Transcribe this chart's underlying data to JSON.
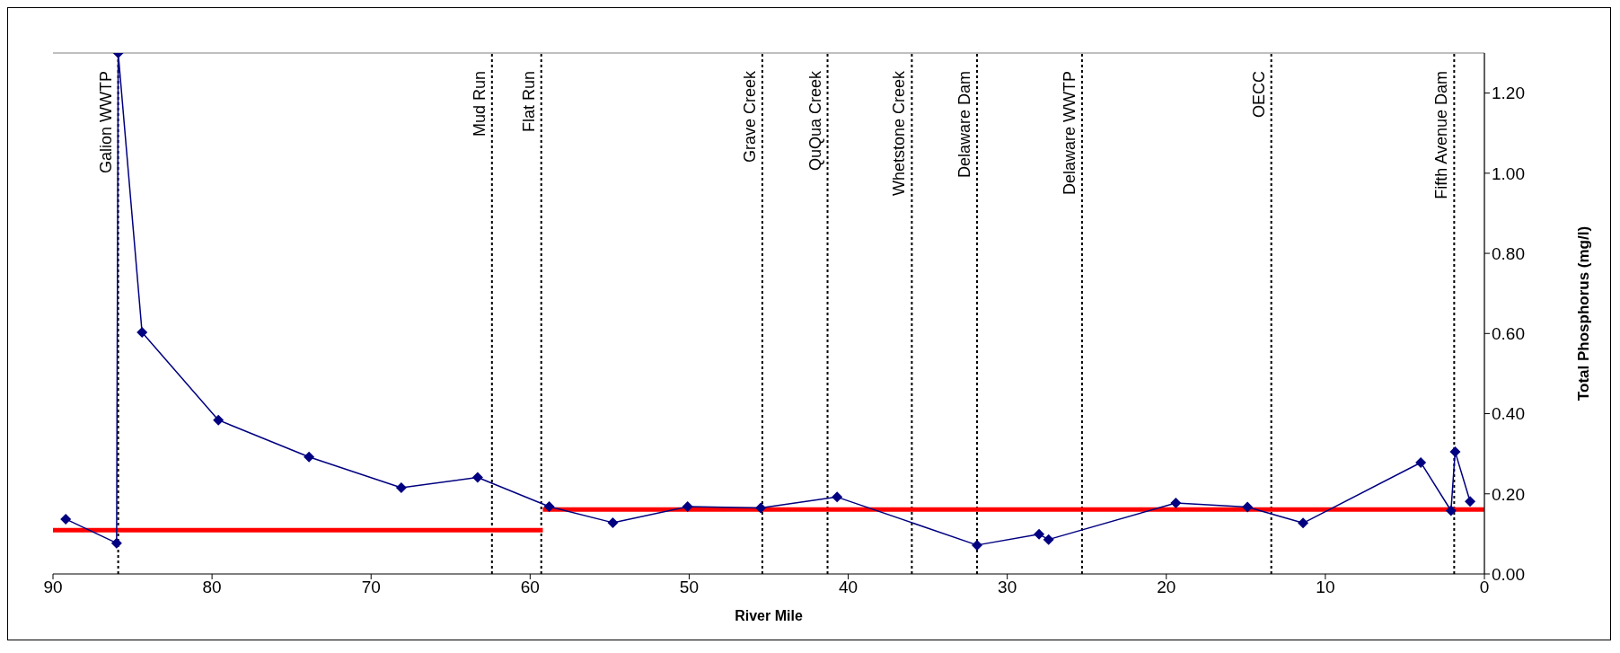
{
  "chart_data": {
    "type": "line",
    "xlabel": "River Mile",
    "ylabel": "Total Phosphorus (mg/l)",
    "xlim": [
      90,
      0
    ],
    "xticks": [
      90,
      80,
      70,
      60,
      50,
      40,
      30,
      20,
      10,
      0
    ],
    "ylim": [
      0,
      1.3
    ],
    "yticks": [
      {
        "value": 0,
        "label": "0.00"
      },
      {
        "value": 0.2,
        "label": "0.20"
      },
      {
        "value": 0.4,
        "label": "0.40"
      },
      {
        "value": 0.6,
        "label": "0.60"
      },
      {
        "value": 0.8,
        "label": "0.80"
      },
      {
        "value": 1.0,
        "label": "1.00"
      },
      {
        "value": 1.2,
        "label": "1.20"
      }
    ],
    "grid": false,
    "series": [
      {
        "color": "#ff0000",
        "marker": "none",
        "x": [
          90,
          59.2
        ],
        "values": [
          0.109,
          0.109
        ]
      },
      {
        "color": "#ff0000",
        "marker": "none",
        "x": [
          59.2,
          0
        ],
        "values": [
          0.161,
          0.161
        ]
      },
      {
        "color": "#000080",
        "marker": "diamond",
        "x": [
          89.2,
          86.0,
          85.9,
          84.4,
          79.6,
          73.9,
          68.1,
          63.3,
          58.8,
          54.8,
          50.1,
          45.5,
          40.7,
          31.9,
          28.0,
          27.4,
          19.4,
          14.9,
          11.4,
          4.0,
          2.1,
          1.84,
          0.9
        ],
        "values": [
          0.137,
          0.077,
          1.3,
          0.603,
          0.384,
          0.292,
          0.215,
          0.241,
          0.168,
          0.128,
          0.168,
          0.165,
          0.192,
          0.072,
          0.099,
          0.086,
          0.177,
          0.167,
          0.127,
          0.278,
          0.158,
          0.305,
          0.181
        ]
      }
    ],
    "ref_lines": [
      {
        "axis": "x",
        "value": 85.9,
        "label": "Galion WWTP",
        "line_style": "dotted",
        "color": "#000000"
      },
      {
        "axis": "x",
        "value": 62.4,
        "label": "Mud Run",
        "line_style": "dotted",
        "color": "#000000"
      },
      {
        "axis": "x",
        "value": 59.3,
        "label": "Flat Run",
        "line_style": "dotted",
        "color": "#000000"
      },
      {
        "axis": "x",
        "value": 45.4,
        "label": "Grave Creek",
        "line_style": "dotted",
        "color": "#000000"
      },
      {
        "axis": "x",
        "value": 41.3,
        "label": "QuQua  Creek",
        "line_style": "dotted",
        "color": "#000000"
      },
      {
        "axis": "x",
        "value": 36.0,
        "label": "Whetstone Creek",
        "line_style": "dotted",
        "color": "#000000"
      },
      {
        "axis": "x",
        "value": 31.9,
        "label": "Delaware Dam",
        "line_style": "dotted",
        "color": "#000000"
      },
      {
        "axis": "x",
        "value": 25.3,
        "label": "Delaware WWTP",
        "line_style": "dotted",
        "color": "#000000"
      },
      {
        "axis": "x",
        "value": 13.4,
        "label": "OECC",
        "line_style": "dotted",
        "color": "#000000"
      },
      {
        "axis": "x",
        "value": 1.9,
        "label": "Fifth Avenue Dam",
        "line_style": "dotted",
        "color": "#000000"
      }
    ]
  }
}
